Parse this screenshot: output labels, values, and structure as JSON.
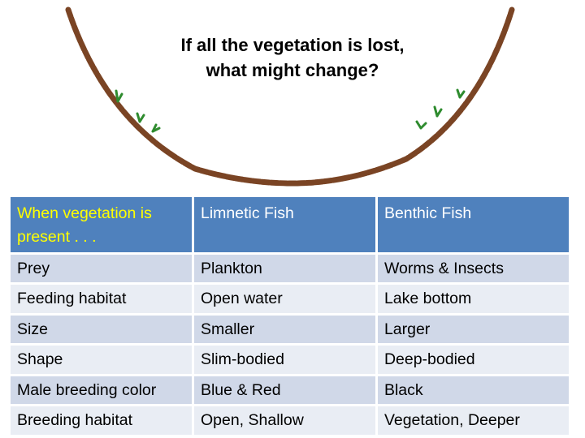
{
  "question": {
    "line1": "If all the vegetation is lost,",
    "line2": "what might change?"
  },
  "colors": {
    "lake_outline": "#7a4424",
    "vegetation": "#2e8b2e",
    "header_bg": "#4f81bd",
    "header_text": "#ffffff",
    "header_highlight_text": "#ffff00",
    "row_odd_bg": "#d0d8e8",
    "row_even_bg": "#e9edf4"
  },
  "table": {
    "headers": [
      "When vegetation is present . . .",
      "Limnetic Fish",
      "Benthic Fish"
    ],
    "rows": [
      [
        "Prey",
        "Plankton",
        "Worms & Insects"
      ],
      [
        "Feeding habitat",
        "Open water",
        "Lake bottom"
      ],
      [
        "Size",
        "Smaller",
        "Larger"
      ],
      [
        "Shape",
        "Slim-bodied",
        "Deep-bodied"
      ],
      [
        "Male breeding color",
        "Blue & Red",
        "Black"
      ],
      [
        "Breeding habitat",
        "Open, Shallow",
        "Vegetation, Deeper"
      ]
    ]
  }
}
